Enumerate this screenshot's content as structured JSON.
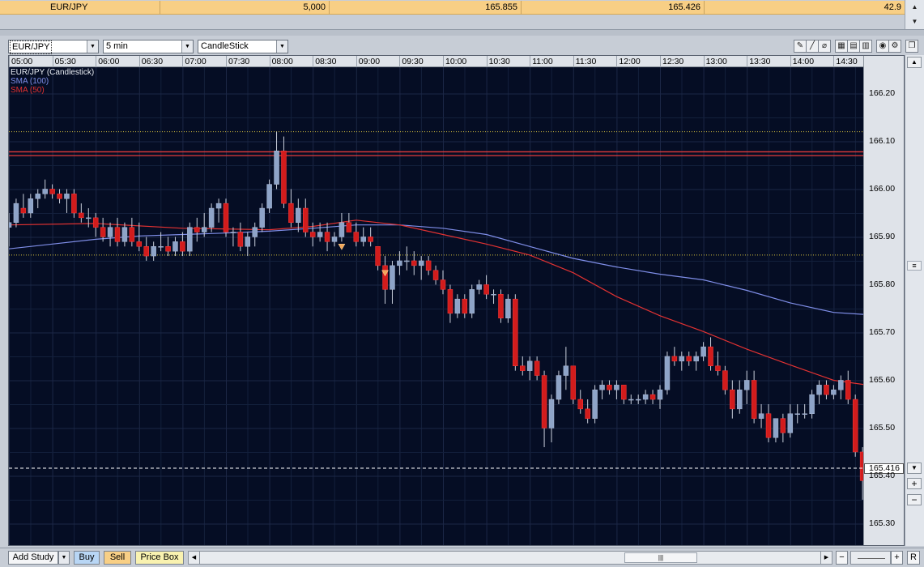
{
  "quote": {
    "symbol": "EUR/JPY",
    "amount": "5,000",
    "bid": "165.855",
    "ask": "165.426",
    "spread": "42.9"
  },
  "toolbar": {
    "symbol_value": "EUR/JPY",
    "interval_value": "5 min",
    "chart_type_value": "CandleStick",
    "tools": [
      "pencil-icon",
      "line-icon",
      "eraser-icon",
      "grid-large-icon",
      "grid-medium-icon",
      "grid-small-icon",
      "zoom-fit-icon",
      "settings-icon",
      "detach-icon"
    ]
  },
  "legend": {
    "main": "EUR/JPY (Candlestick)",
    "sma100": "SMA (100)",
    "sma50": "SMA (50)"
  },
  "current_price_label": "165.416",
  "bottom": {
    "add_study": "Add Study",
    "buy": "Buy",
    "sell": "Sell",
    "price_box": "Price Box",
    "reset": "R"
  },
  "colors": {
    "background": "#050d24",
    "up_candle": "#8ea4c8",
    "down_candle": "#d21c1c",
    "sma100": "#7f8ee8",
    "sma50": "#e23232",
    "level_line": "#e33b3b",
    "dotted_level": "#d7c33c"
  },
  "chart_data": {
    "type": "candlestick",
    "title": "EUR/JPY (Candlestick)",
    "interval": "5 min",
    "time_ticks": [
      "05:00",
      "05:30",
      "06:00",
      "06:30",
      "07:00",
      "07:30",
      "08:00",
      "08:30",
      "09:00",
      "09:30",
      "10:00",
      "10:30",
      "11:00",
      "11:30",
      "12:00",
      "12:30",
      "13:00",
      "13:30",
      "14:00",
      "14:30"
    ],
    "price_ticks": [
      "166.20",
      "166.10",
      "166.00",
      "165.90",
      "165.80",
      "165.70",
      "165.60",
      "165.50",
      "165.40",
      "165.30"
    ],
    "ylim": [
      165.255,
      166.255
    ],
    "current_price": 165.416,
    "horizontal_levels": [
      166.078,
      166.07
    ],
    "dotted_levels": [
      166.12,
      165.862
    ],
    "markers": [
      {
        "time": "08:50",
        "price": 165.885
      },
      {
        "time": "09:20",
        "price": 165.83
      }
    ],
    "candles": [
      {
        "t": "05:00",
        "o": 165.92,
        "h": 165.95,
        "l": 165.88,
        "c": 165.93
      },
      {
        "t": "05:05",
        "o": 165.93,
        "h": 165.98,
        "l": 165.92,
        "c": 165.97
      },
      {
        "t": "05:10",
        "o": 165.96,
        "h": 165.99,
        "l": 165.94,
        "c": 165.95
      },
      {
        "t": "05:15",
        "o": 165.95,
        "h": 165.99,
        "l": 165.94,
        "c": 165.98
      },
      {
        "t": "05:20",
        "o": 165.98,
        "h": 166.0,
        "l": 165.96,
        "c": 165.99
      },
      {
        "t": "05:25",
        "o": 165.99,
        "h": 166.02,
        "l": 165.98,
        "c": 166.0
      },
      {
        "t": "05:30",
        "o": 166.0,
        "h": 166.01,
        "l": 165.98,
        "c": 165.99
      },
      {
        "t": "05:35",
        "o": 165.99,
        "h": 166.0,
        "l": 165.97,
        "c": 165.98
      },
      {
        "t": "05:40",
        "o": 165.98,
        "h": 166.0,
        "l": 165.95,
        "c": 165.99
      },
      {
        "t": "05:45",
        "o": 165.99,
        "h": 166.0,
        "l": 165.94,
        "c": 165.95
      },
      {
        "t": "05:50",
        "o": 165.95,
        "h": 165.97,
        "l": 165.93,
        "c": 165.94
      },
      {
        "t": "05:55",
        "o": 165.94,
        "h": 165.96,
        "l": 165.92,
        "c": 165.94
      },
      {
        "t": "06:00",
        "o": 165.94,
        "h": 165.95,
        "l": 165.9,
        "c": 165.92
      },
      {
        "t": "06:05",
        "o": 165.92,
        "h": 165.94,
        "l": 165.89,
        "c": 165.9
      },
      {
        "t": "06:10",
        "o": 165.9,
        "h": 165.93,
        "l": 165.88,
        "c": 165.92
      },
      {
        "t": "06:15",
        "o": 165.92,
        "h": 165.94,
        "l": 165.88,
        "c": 165.89
      },
      {
        "t": "06:20",
        "o": 165.89,
        "h": 165.93,
        "l": 165.88,
        "c": 165.92
      },
      {
        "t": "06:25",
        "o": 165.92,
        "h": 165.94,
        "l": 165.88,
        "c": 165.89
      },
      {
        "t": "06:30",
        "o": 165.89,
        "h": 165.93,
        "l": 165.87,
        "c": 165.88
      },
      {
        "t": "06:35",
        "o": 165.88,
        "h": 165.9,
        "l": 165.85,
        "c": 165.86
      },
      {
        "t": "06:40",
        "o": 165.86,
        "h": 165.89,
        "l": 165.85,
        "c": 165.88
      },
      {
        "t": "06:45",
        "o": 165.88,
        "h": 165.91,
        "l": 165.87,
        "c": 165.88
      },
      {
        "t": "06:50",
        "o": 165.88,
        "h": 165.9,
        "l": 165.86,
        "c": 165.87
      },
      {
        "t": "06:55",
        "o": 165.87,
        "h": 165.9,
        "l": 165.86,
        "c": 165.89
      },
      {
        "t": "07:00",
        "o": 165.89,
        "h": 165.91,
        "l": 165.86,
        "c": 165.87
      },
      {
        "t": "07:05",
        "o": 165.87,
        "h": 165.93,
        "l": 165.86,
        "c": 165.92
      },
      {
        "t": "07:10",
        "o": 165.92,
        "h": 165.94,
        "l": 165.89,
        "c": 165.91
      },
      {
        "t": "07:15",
        "o": 165.91,
        "h": 165.95,
        "l": 165.9,
        "c": 165.92
      },
      {
        "t": "07:20",
        "o": 165.92,
        "h": 165.97,
        "l": 165.91,
        "c": 165.96
      },
      {
        "t": "07:25",
        "o": 165.96,
        "h": 165.98,
        "l": 165.93,
        "c": 165.97
      },
      {
        "t": "07:30",
        "o": 165.97,
        "h": 165.98,
        "l": 165.9,
        "c": 165.91
      },
      {
        "t": "07:35",
        "o": 165.91,
        "h": 165.92,
        "l": 165.88,
        "c": 165.91
      },
      {
        "t": "07:40",
        "o": 165.91,
        "h": 165.93,
        "l": 165.87,
        "c": 165.88
      },
      {
        "t": "07:45",
        "o": 165.88,
        "h": 165.91,
        "l": 165.86,
        "c": 165.9
      },
      {
        "t": "07:50",
        "o": 165.9,
        "h": 165.93,
        "l": 165.88,
        "c": 165.92
      },
      {
        "t": "07:55",
        "o": 165.92,
        "h": 165.97,
        "l": 165.91,
        "c": 165.96
      },
      {
        "t": "08:00",
        "o": 165.96,
        "h": 166.02,
        "l": 165.95,
        "c": 166.01
      },
      {
        "t": "08:05",
        "o": 166.01,
        "h": 166.12,
        "l": 166.0,
        "c": 166.08
      },
      {
        "t": "08:10",
        "o": 166.08,
        "h": 166.11,
        "l": 165.96,
        "c": 165.97
      },
      {
        "t": "08:15",
        "o": 165.97,
        "h": 166.0,
        "l": 165.92,
        "c": 165.93
      },
      {
        "t": "08:20",
        "o": 165.93,
        "h": 165.98,
        "l": 165.91,
        "c": 165.96
      },
      {
        "t": "08:25",
        "o": 165.96,
        "h": 165.98,
        "l": 165.9,
        "c": 165.91
      },
      {
        "t": "08:30",
        "o": 165.91,
        "h": 165.93,
        "l": 165.88,
        "c": 165.9
      },
      {
        "t": "08:35",
        "o": 165.9,
        "h": 165.93,
        "l": 165.89,
        "c": 165.91
      },
      {
        "t": "08:40",
        "o": 165.91,
        "h": 165.93,
        "l": 165.87,
        "c": 165.89
      },
      {
        "t": "08:45",
        "o": 165.89,
        "h": 165.91,
        "l": 165.88,
        "c": 165.9
      },
      {
        "t": "08:50",
        "o": 165.9,
        "h": 165.95,
        "l": 165.89,
        "c": 165.93
      },
      {
        "t": "08:55",
        "o": 165.93,
        "h": 165.95,
        "l": 165.91,
        "c": 165.91
      },
      {
        "t": "09:00",
        "o": 165.91,
        "h": 165.93,
        "l": 165.88,
        "c": 165.89
      },
      {
        "t": "09:05",
        "o": 165.89,
        "h": 165.92,
        "l": 165.88,
        "c": 165.9
      },
      {
        "t": "09:10",
        "o": 165.9,
        "h": 165.92,
        "l": 165.88,
        "c": 165.89
      },
      {
        "t": "09:15",
        "o": 165.88,
        "h": 165.88,
        "l": 165.83,
        "c": 165.84
      },
      {
        "t": "09:20",
        "o": 165.84,
        "h": 165.86,
        "l": 165.76,
        "c": 165.79
      },
      {
        "t": "09:25",
        "o": 165.79,
        "h": 165.85,
        "l": 165.76,
        "c": 165.84
      },
      {
        "t": "09:30",
        "o": 165.84,
        "h": 165.87,
        "l": 165.82,
        "c": 165.85
      },
      {
        "t": "09:35",
        "o": 165.85,
        "h": 165.88,
        "l": 165.83,
        "c": 165.85
      },
      {
        "t": "09:40",
        "o": 165.85,
        "h": 165.87,
        "l": 165.82,
        "c": 165.84
      },
      {
        "t": "09:45",
        "o": 165.84,
        "h": 165.86,
        "l": 165.81,
        "c": 165.85
      },
      {
        "t": "09:50",
        "o": 165.85,
        "h": 165.86,
        "l": 165.82,
        "c": 165.83
      },
      {
        "t": "09:55",
        "o": 165.83,
        "h": 165.84,
        "l": 165.8,
        "c": 165.81
      },
      {
        "t": "10:00",
        "o": 165.81,
        "h": 165.83,
        "l": 165.78,
        "c": 165.79
      },
      {
        "t": "10:05",
        "o": 165.79,
        "h": 165.8,
        "l": 165.72,
        "c": 165.74
      },
      {
        "t": "10:10",
        "o": 165.74,
        "h": 165.78,
        "l": 165.73,
        "c": 165.77
      },
      {
        "t": "10:15",
        "o": 165.77,
        "h": 165.78,
        "l": 165.73,
        "c": 165.74
      },
      {
        "t": "10:20",
        "o": 165.74,
        "h": 165.8,
        "l": 165.73,
        "c": 165.79
      },
      {
        "t": "10:25",
        "o": 165.79,
        "h": 165.81,
        "l": 165.78,
        "c": 165.8
      },
      {
        "t": "10:30",
        "o": 165.8,
        "h": 165.82,
        "l": 165.77,
        "c": 165.78
      },
      {
        "t": "10:35",
        "o": 165.78,
        "h": 165.79,
        "l": 165.76,
        "c": 165.78
      },
      {
        "t": "10:40",
        "o": 165.78,
        "h": 165.79,
        "l": 165.72,
        "c": 165.73
      },
      {
        "t": "10:45",
        "o": 165.73,
        "h": 165.78,
        "l": 165.72,
        "c": 165.77
      },
      {
        "t": "10:50",
        "o": 165.77,
        "h": 165.78,
        "l": 165.62,
        "c": 165.63
      },
      {
        "t": "10:55",
        "o": 165.63,
        "h": 165.65,
        "l": 165.61,
        "c": 165.62
      },
      {
        "t": "11:00",
        "o": 165.62,
        "h": 165.65,
        "l": 165.6,
        "c": 165.64
      },
      {
        "t": "11:05",
        "o": 165.64,
        "h": 165.65,
        "l": 165.6,
        "c": 165.61
      },
      {
        "t": "11:10",
        "o": 165.61,
        "h": 165.62,
        "l": 165.46,
        "c": 165.5
      },
      {
        "t": "11:15",
        "o": 165.5,
        "h": 165.57,
        "l": 165.47,
        "c": 165.56
      },
      {
        "t": "11:20",
        "o": 165.56,
        "h": 165.62,
        "l": 165.55,
        "c": 165.61
      },
      {
        "t": "11:25",
        "o": 165.61,
        "h": 165.67,
        "l": 165.58,
        "c": 165.63
      },
      {
        "t": "11:30",
        "o": 165.63,
        "h": 165.63,
        "l": 165.55,
        "c": 165.56
      },
      {
        "t": "11:35",
        "o": 165.56,
        "h": 165.58,
        "l": 165.53,
        "c": 165.54
      },
      {
        "t": "11:40",
        "o": 165.54,
        "h": 165.56,
        "l": 165.51,
        "c": 165.52
      },
      {
        "t": "11:45",
        "o": 165.52,
        "h": 165.59,
        "l": 165.51,
        "c": 165.58
      },
      {
        "t": "11:50",
        "o": 165.58,
        "h": 165.6,
        "l": 165.56,
        "c": 165.59
      },
      {
        "t": "11:55",
        "o": 165.59,
        "h": 165.6,
        "l": 165.57,
        "c": 165.58
      },
      {
        "t": "12:00",
        "o": 165.58,
        "h": 165.6,
        "l": 165.56,
        "c": 165.59
      },
      {
        "t": "12:05",
        "o": 165.59,
        "h": 165.59,
        "l": 165.55,
        "c": 165.56
      },
      {
        "t": "12:10",
        "o": 165.56,
        "h": 165.57,
        "l": 165.55,
        "c": 165.56
      },
      {
        "t": "12:15",
        "o": 165.56,
        "h": 165.57,
        "l": 165.55,
        "c": 165.56
      },
      {
        "t": "12:20",
        "o": 165.56,
        "h": 165.58,
        "l": 165.55,
        "c": 165.57
      },
      {
        "t": "12:25",
        "o": 165.57,
        "h": 165.58,
        "l": 165.55,
        "c": 165.56
      },
      {
        "t": "12:30",
        "o": 165.56,
        "h": 165.59,
        "l": 165.54,
        "c": 165.58
      },
      {
        "t": "12:35",
        "o": 165.58,
        "h": 165.66,
        "l": 165.57,
        "c": 165.65
      },
      {
        "t": "12:40",
        "o": 165.65,
        "h": 165.67,
        "l": 165.63,
        "c": 165.64
      },
      {
        "t": "12:45",
        "o": 165.64,
        "h": 165.66,
        "l": 165.62,
        "c": 165.65
      },
      {
        "t": "12:50",
        "o": 165.65,
        "h": 165.66,
        "l": 165.63,
        "c": 165.64
      },
      {
        "t": "12:55",
        "o": 165.64,
        "h": 165.66,
        "l": 165.62,
        "c": 165.65
      },
      {
        "t": "13:00",
        "o": 165.65,
        "h": 165.68,
        "l": 165.64,
        "c": 165.67
      },
      {
        "t": "13:05",
        "o": 165.67,
        "h": 165.69,
        "l": 165.62,
        "c": 165.63
      },
      {
        "t": "13:10",
        "o": 165.63,
        "h": 165.66,
        "l": 165.61,
        "c": 165.62
      },
      {
        "t": "13:15",
        "o": 165.62,
        "h": 165.63,
        "l": 165.57,
        "c": 165.58
      },
      {
        "t": "13:20",
        "o": 165.58,
        "h": 165.6,
        "l": 165.52,
        "c": 165.54
      },
      {
        "t": "13:25",
        "o": 165.54,
        "h": 165.6,
        "l": 165.53,
        "c": 165.58
      },
      {
        "t": "13:30",
        "o": 165.58,
        "h": 165.62,
        "l": 165.55,
        "c": 165.6
      },
      {
        "t": "13:35",
        "o": 165.6,
        "h": 165.62,
        "l": 165.51,
        "c": 165.52
      },
      {
        "t": "13:40",
        "o": 165.52,
        "h": 165.55,
        "l": 165.5,
        "c": 165.53
      },
      {
        "t": "13:45",
        "o": 165.53,
        "h": 165.55,
        "l": 165.47,
        "c": 165.48
      },
      {
        "t": "13:50",
        "o": 165.48,
        "h": 165.52,
        "l": 165.47,
        "c": 165.52
      },
      {
        "t": "13:55",
        "o": 165.52,
        "h": 165.53,
        "l": 165.47,
        "c": 165.49
      },
      {
        "t": "14:00",
        "o": 165.49,
        "h": 165.55,
        "l": 165.48,
        "c": 165.53
      },
      {
        "t": "14:05",
        "o": 165.53,
        "h": 165.55,
        "l": 165.51,
        "c": 165.53
      },
      {
        "t": "14:10",
        "o": 165.53,
        "h": 165.55,
        "l": 165.52,
        "c": 165.53
      },
      {
        "t": "14:15",
        "o": 165.53,
        "h": 165.58,
        "l": 165.52,
        "c": 165.57
      },
      {
        "t": "14:20",
        "o": 165.57,
        "h": 165.6,
        "l": 165.55,
        "c": 165.59
      },
      {
        "t": "14:25",
        "o": 165.59,
        "h": 165.6,
        "l": 165.56,
        "c": 165.57
      },
      {
        "t": "14:30",
        "o": 165.57,
        "h": 165.59,
        "l": 165.56,
        "c": 165.58
      },
      {
        "t": "14:35",
        "o": 165.58,
        "h": 165.61,
        "l": 165.56,
        "c": 165.6
      },
      {
        "t": "14:40",
        "o": 165.6,
        "h": 165.62,
        "l": 165.55,
        "c": 165.56
      },
      {
        "t": "14:45",
        "o": 165.56,
        "h": 165.57,
        "l": 165.44,
        "c": 165.45
      },
      {
        "t": "14:50",
        "o": 165.45,
        "h": 165.46,
        "l": 165.35,
        "c": 165.39
      },
      {
        "t": "14:55",
        "o": 165.39,
        "h": 165.45,
        "l": 165.37,
        "c": 165.44
      },
      {
        "t": "15:00",
        "o": 165.44,
        "h": 165.45,
        "l": 165.4,
        "c": 165.42
      }
    ],
    "sma50": [
      [
        "05:00",
        165.925
      ],
      [
        "06:00",
        165.928
      ],
      [
        "07:00",
        165.918
      ],
      [
        "08:00",
        165.915
      ],
      [
        "08:30",
        165.922
      ],
      [
        "09:00",
        165.935
      ],
      [
        "09:30",
        165.925
      ],
      [
        "10:00",
        165.905
      ],
      [
        "10:30",
        165.885
      ],
      [
        "11:00",
        165.862
      ],
      [
        "11:30",
        165.825
      ],
      [
        "12:00",
        165.775
      ],
      [
        "12:30",
        165.735
      ],
      [
        "13:00",
        165.702
      ],
      [
        "13:30",
        165.665
      ],
      [
        "14:00",
        165.632
      ],
      [
        "14:30",
        165.6
      ],
      [
        "15:05",
        165.585
      ]
    ],
    "sma100": [
      [
        "05:00",
        165.875
      ],
      [
        "05:30",
        165.885
      ],
      [
        "06:00",
        165.895
      ],
      [
        "06:30",
        165.902
      ],
      [
        "07:00",
        165.905
      ],
      [
        "07:30",
        165.908
      ],
      [
        "08:00",
        165.912
      ],
      [
        "08:30",
        165.918
      ],
      [
        "09:00",
        165.925
      ],
      [
        "09:30",
        165.925
      ],
      [
        "10:00",
        165.918
      ],
      [
        "10:30",
        165.905
      ],
      [
        "11:00",
        165.88
      ],
      [
        "11:30",
        165.855
      ],
      [
        "12:00",
        165.837
      ],
      [
        "12:30",
        165.822
      ],
      [
        "13:00",
        165.81
      ],
      [
        "13:30",
        165.788
      ],
      [
        "14:00",
        165.762
      ],
      [
        "14:30",
        165.742
      ],
      [
        "15:05",
        165.735
      ]
    ]
  }
}
